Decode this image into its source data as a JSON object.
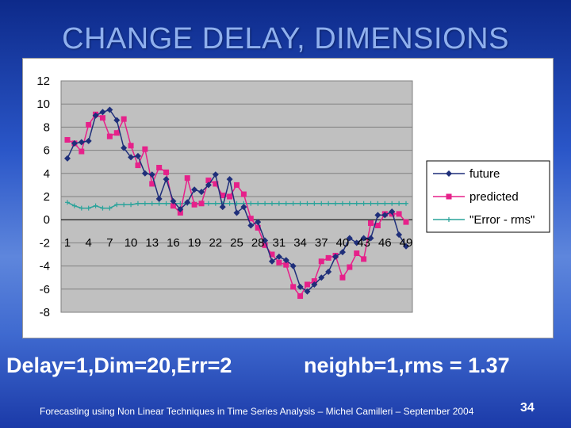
{
  "slide": {
    "title": "CHANGE DELAY, DIMENSIONS",
    "caption_left": "Delay=1,Dim=20,Err=2",
    "caption_right": "neighb=1,rms = 1.37",
    "footer": "Forecasting using Non Linear Techniques in Time Series Analysis – Michel Camilleri – September 2004",
    "page_number": "34"
  },
  "chart_data": {
    "type": "line",
    "title": "",
    "xlabel": "",
    "ylabel": "",
    "ylim": [
      -8,
      12
    ],
    "yticks": [
      -8,
      -6,
      -4,
      -2,
      0,
      2,
      4,
      6,
      8,
      10,
      12
    ],
    "xtick_labels": [
      "1",
      "4",
      "7",
      "10",
      "13",
      "16",
      "19",
      "22",
      "25",
      "28",
      "31",
      "34",
      "37",
      "40",
      "43",
      "46",
      "49"
    ],
    "grid": true,
    "legend_position": "right",
    "plot_background": "#c0c0c0",
    "series": [
      {
        "name": "future",
        "color": "#1f2f7a",
        "marker": "diamond",
        "values": [
          5.3,
          6.6,
          6.7,
          6.8,
          9.0,
          9.3,
          9.5,
          8.6,
          6.2,
          5.4,
          5.5,
          4.0,
          3.9,
          1.8,
          3.5,
          1.6,
          0.9,
          1.5,
          2.6,
          2.4,
          3.0,
          3.9,
          1.1,
          3.5,
          0.6,
          1.1,
          -0.5,
          -0.2,
          -1.8,
          -3.6,
          -3.2,
          -3.5,
          -4.0,
          -5.8,
          -6.2,
          -5.6,
          -5.0,
          -4.5,
          -3.2,
          -2.8,
          -1.6,
          -2.0,
          -1.6,
          -1.6,
          0.4,
          0.4,
          0.7,
          -1.3,
          -2.3
        ]
      },
      {
        "name": "predicted",
        "color": "#e6218a",
        "marker": "square",
        "values": [
          6.9,
          6.6,
          5.9,
          8.2,
          9.1,
          8.8,
          7.2,
          7.5,
          8.7,
          6.4,
          4.7,
          6.1,
          3.1,
          4.5,
          4.1,
          1.2,
          0.6,
          3.6,
          1.3,
          1.4,
          3.4,
          3.1,
          2.1,
          2.0,
          3.0,
          2.2,
          0.1,
          -0.7,
          -2.2,
          -3.0,
          -3.7,
          -3.9,
          -5.8,
          -6.6,
          -5.6,
          -5.3,
          -3.6,
          -3.3,
          -3.1,
          -5.0,
          -4.1,
          -2.9,
          -3.4,
          -0.3,
          -0.5,
          0.5,
          0.5,
          0.5,
          -0.2
        ]
      },
      {
        "name": "\"Error - rms\"",
        "color": "#2aa39a",
        "marker": "plus",
        "values": [
          1.5,
          1.2,
          1.0,
          1.0,
          1.2,
          1.0,
          1.0,
          1.3,
          1.3,
          1.3,
          1.4,
          1.4,
          1.4,
          1.4,
          1.4,
          1.4,
          1.4,
          1.4,
          1.4,
          1.4,
          1.4,
          1.4,
          1.4,
          1.4,
          1.4,
          1.4,
          1.4,
          1.4,
          1.4,
          1.4,
          1.4,
          1.4,
          1.4,
          1.4,
          1.4,
          1.4,
          1.4,
          1.4,
          1.4,
          1.4,
          1.4,
          1.4,
          1.4,
          1.4,
          1.4,
          1.4,
          1.4,
          1.4,
          1.4
        ]
      }
    ]
  }
}
